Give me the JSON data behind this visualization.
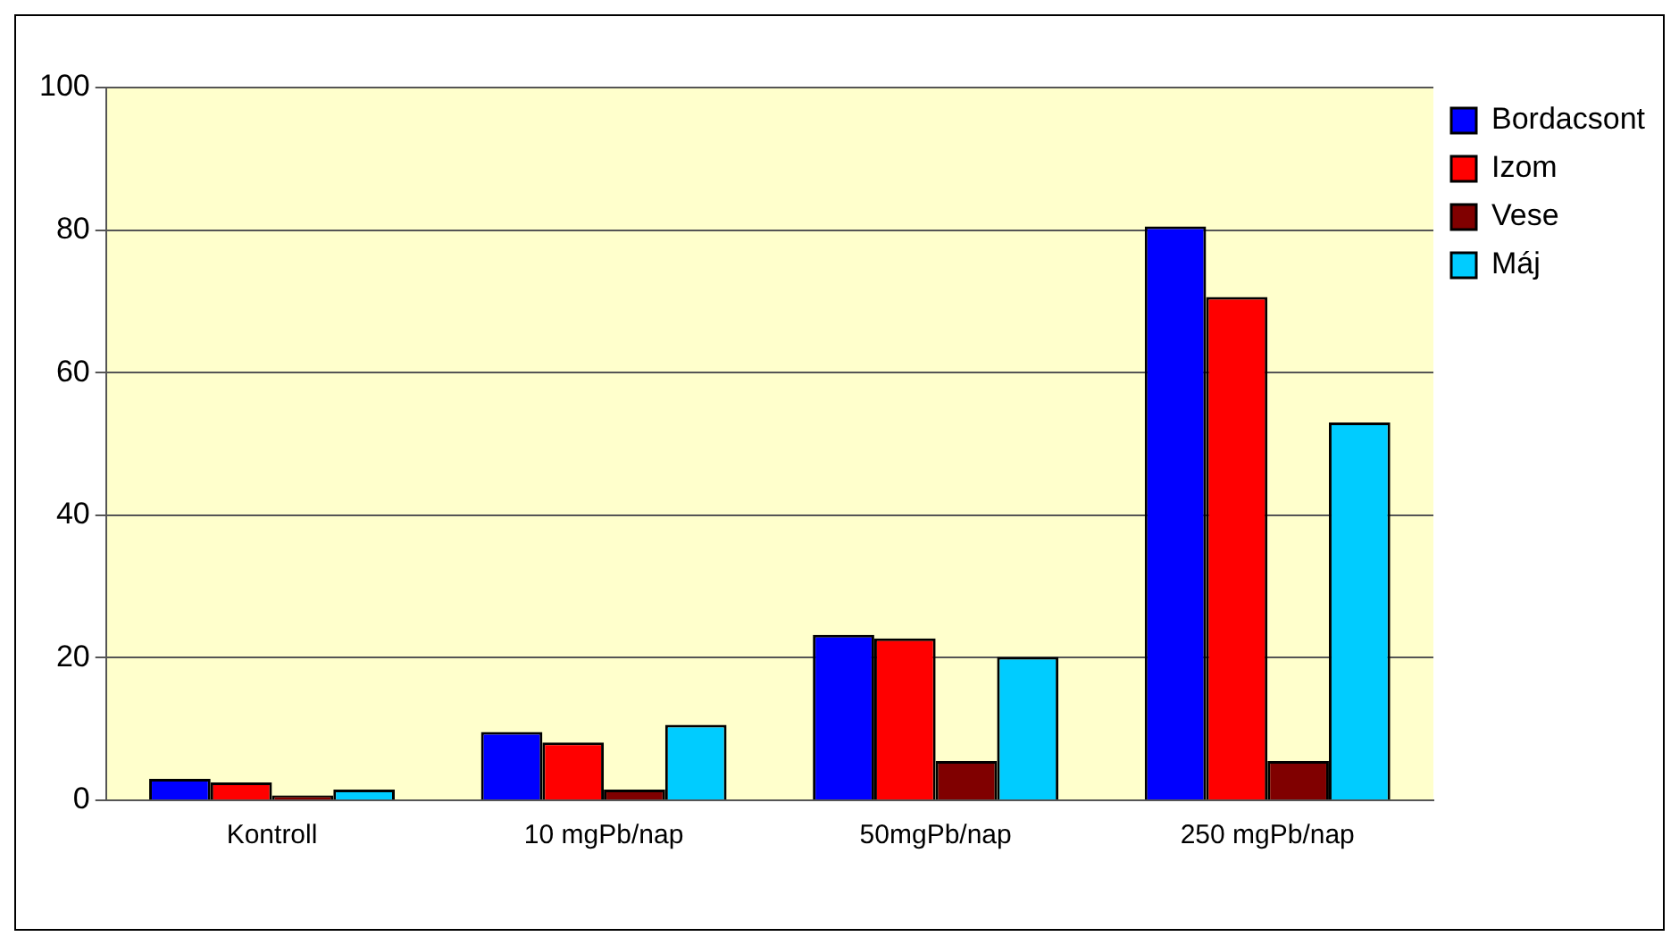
{
  "chart_data": {
    "type": "bar",
    "categories": [
      "Kontroll",
      "10 mgPb/nap",
      "50mgPb/nap",
      "250 mgPb/nap"
    ],
    "series": [
      {
        "name": "Bordacsont",
        "color": "#0000ff",
        "values": [
          3.0,
          9.6,
          23.2,
          80.5
        ]
      },
      {
        "name": "Izom",
        "color": "#ff0000",
        "values": [
          2.5,
          8.1,
          22.7,
          70.6
        ]
      },
      {
        "name": "Vese",
        "color": "#800000",
        "values": [
          0.7,
          1.5,
          5.5,
          5.5
        ]
      },
      {
        "name": "Máj",
        "color": "#00ccff",
        "values": [
          1.5,
          10.6,
          20.1,
          53.0
        ]
      }
    ],
    "ylim": [
      0,
      100
    ],
    "yticks": [
      0,
      20,
      40,
      60,
      80,
      100
    ],
    "grid": "y",
    "legend": "top right"
  }
}
